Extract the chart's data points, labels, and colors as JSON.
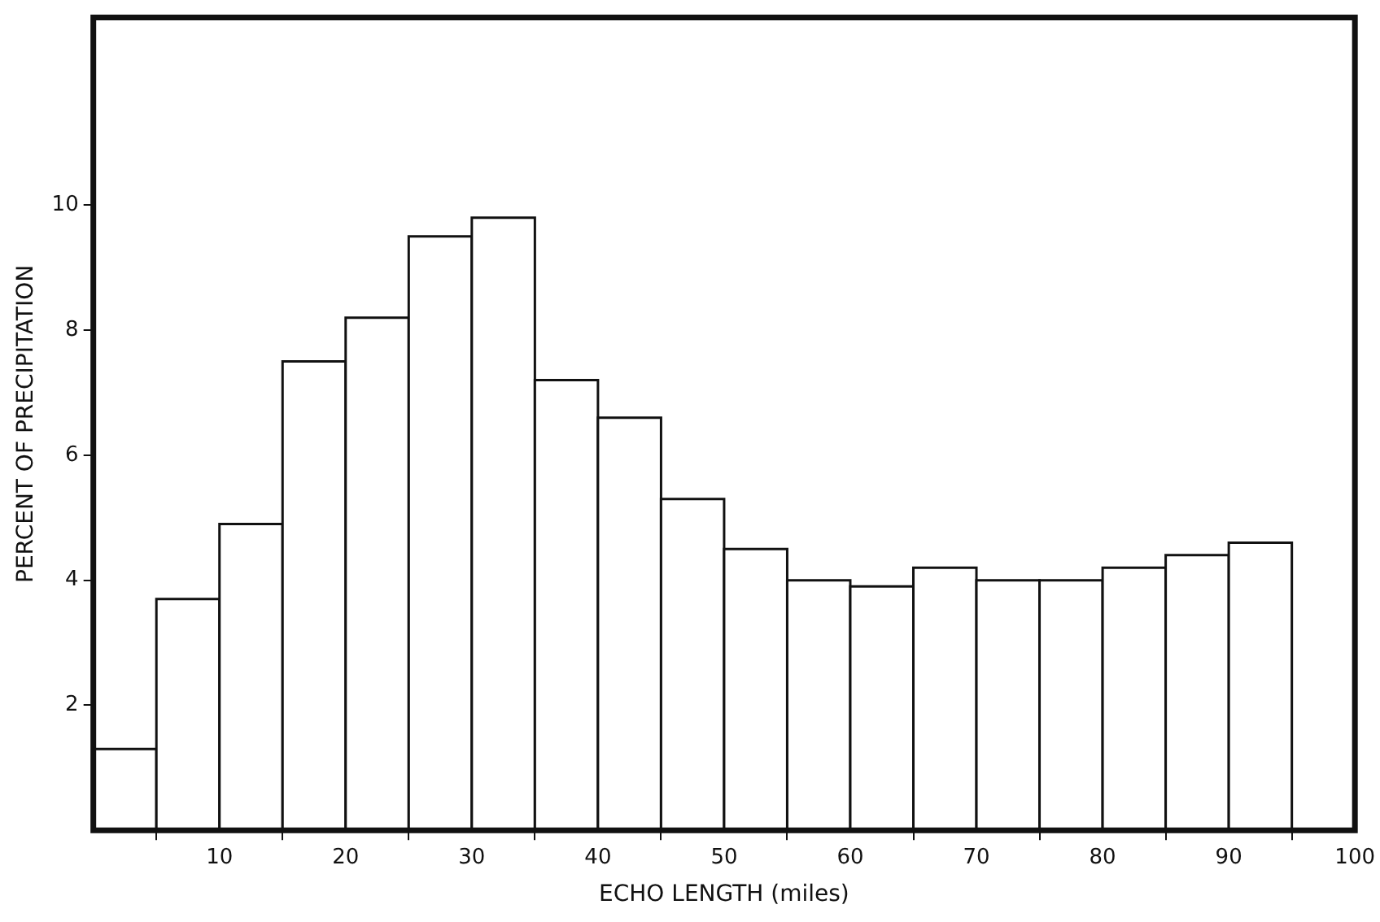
{
  "chart_data": {
    "type": "histogram",
    "xlabel": "ECHO LENGTH (miles)",
    "ylabel": "PERCENT OF PRECIPITATION",
    "bins": [
      0,
      5,
      10,
      15,
      20,
      25,
      30,
      35,
      40,
      45,
      50,
      55,
      60,
      65,
      70,
      75,
      80,
      85,
      90,
      95
    ],
    "values": [
      1.3,
      3.7,
      4.9,
      7.5,
      8.2,
      9.5,
      9.8,
      7.2,
      6.6,
      5.3,
      4.5,
      4.0,
      3.9,
      4.2,
      4.0,
      4.0,
      4.2,
      4.4,
      4.6
    ],
    "color": "#ffffff",
    "xlim": [
      0,
      100
    ],
    "xticks": [
      10,
      20,
      30,
      40,
      50,
      60,
      70,
      80,
      90,
      100
    ],
    "ylim": [
      0,
      13
    ],
    "yticks": [
      2,
      4,
      6,
      8,
      10
    ],
    "grid": false,
    "legend": false
  }
}
